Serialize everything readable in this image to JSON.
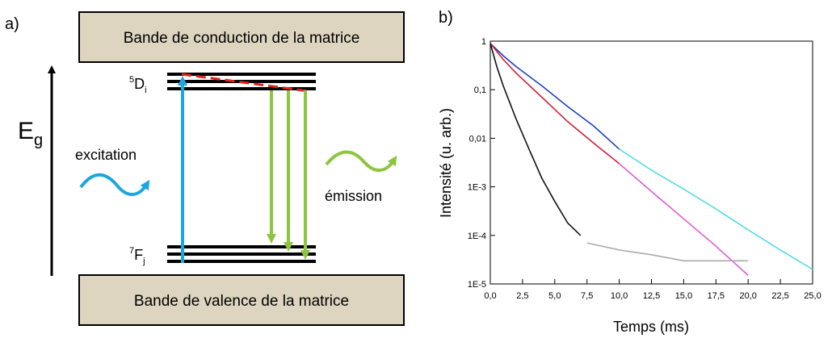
{
  "panel_a": {
    "label": "a)",
    "conduction_band": "Bande de conduction de la matrice",
    "valence_band": "Bande de valence de la matrice",
    "energy_axis": {
      "main": "E",
      "sub": "g"
    },
    "upper_level": {
      "sup": "5",
      "main": "D",
      "sub": "i"
    },
    "lower_level": {
      "sup": "7",
      "main": "F",
      "sub": "j"
    },
    "excitation_label": "excitation",
    "emission_label": "émission",
    "colors": {
      "band_fill": "#ddd5c0",
      "excitation": "#1aa7e0",
      "emission": "#8cc63f",
      "relaxation": "#e0241b"
    }
  },
  "panel_b": {
    "label": "b)"
  },
  "chart_data": {
    "type": "line",
    "xlabel": "Temps (ms)",
    "ylabel": "Intensité (u. arb.)",
    "xlim": [
      0,
      25
    ],
    "ylim": [
      1e-05,
      1
    ],
    "yscale": "log",
    "grid": false,
    "x_tick_labels": [
      "0,0",
      "2,5",
      "5,0",
      "7,5",
      "10,0",
      "12,5",
      "15,0",
      "17,5",
      "20,0",
      "22,5",
      "25,0"
    ],
    "y_tick_labels": [
      "1",
      "0,1",
      "0,01",
      "1E-3",
      "1E-4",
      "1E-5"
    ],
    "series": [
      {
        "color": "#1f3fbf",
        "x": [
          0,
          1,
          2,
          4,
          6,
          8,
          10
        ],
        "y": [
          0.9,
          0.5,
          0.3,
          0.12,
          0.045,
          0.018,
          0.006
        ]
      },
      {
        "color": "#4fdde6",
        "x": [
          10,
          12.5,
          15,
          17.5,
          20,
          22.5,
          25
        ],
        "y": [
          0.006,
          0.0022,
          0.0009,
          0.00035,
          0.00013,
          5e-05,
          2e-05
        ]
      },
      {
        "color": "#d01f3a",
        "x": [
          0,
          1,
          2,
          4,
          6,
          8,
          10
        ],
        "y": [
          0.9,
          0.42,
          0.22,
          0.07,
          0.022,
          0.008,
          0.003
        ]
      },
      {
        "color": "#e05ad0",
        "x": [
          10,
          12.5,
          15,
          17.5,
          20
        ],
        "y": [
          0.003,
          0.0008,
          0.00022,
          6e-05,
          1.5e-05
        ]
      },
      {
        "color": "#111111",
        "x": [
          0,
          0.5,
          1,
          2,
          3,
          4,
          5,
          6,
          7
        ],
        "y": [
          0.9,
          0.3,
          0.12,
          0.025,
          0.006,
          0.0015,
          0.0005,
          0.00018,
          0.0001
        ]
      },
      {
        "color": "#aaaaaa",
        "x": [
          7.5,
          10,
          12.5,
          15,
          17.5,
          20
        ],
        "y": [
          7e-05,
          5e-05,
          4e-05,
          3e-05,
          3e-05,
          3e-05
        ]
      }
    ]
  }
}
